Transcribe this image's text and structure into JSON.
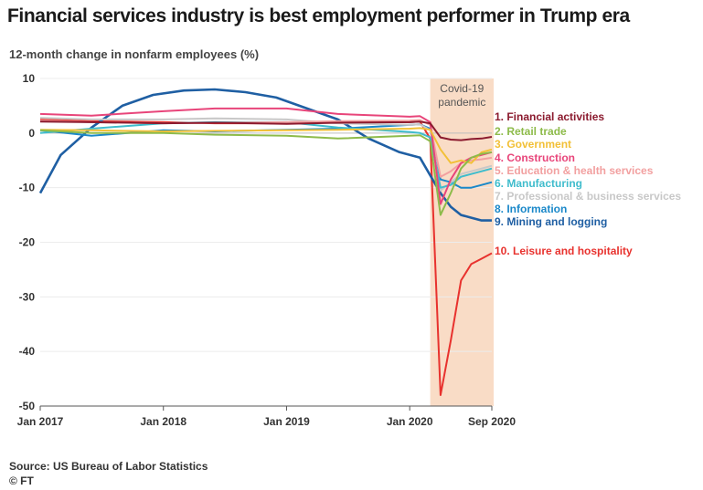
{
  "title": "Financial services industry is best employment performer in Trump era",
  "subtitle": "12-month change in nonfarm employees (%)",
  "source": "Source: US Bureau of Labor Statistics",
  "copyright": "© FT",
  "chart_data": {
    "type": "line",
    "title": "Financial services industry is best employment performer in Trump era",
    "ylabel": "12-month change in nonfarm employees (%)",
    "xlabel": "",
    "x_range": [
      "2017-01",
      "2020-09"
    ],
    "ylim": [
      -50,
      10
    ],
    "y_ticks": [
      10,
      0,
      -10,
      -20,
      -30,
      -40,
      -50
    ],
    "x_ticks": [
      {
        "date": "2017-01",
        "label": "Jan 2017"
      },
      {
        "date": "2018-01",
        "label": "Jan 2018"
      },
      {
        "date": "2019-01",
        "label": "Jan 2019"
      },
      {
        "date": "2020-01",
        "label": "Jan 2020"
      },
      {
        "date": "2020-09",
        "label": "Sep 2020"
      }
    ],
    "grid": true,
    "annotations": [
      {
        "type": "band",
        "from": "2020-03",
        "to": "2020-09",
        "text": [
          "Covid-19",
          "pandemic"
        ],
        "color": "#f9dcc6"
      }
    ],
    "series": [
      {
        "name": "1. Financial activities",
        "color": "#8b1a2e",
        "points": [
          [
            "2017-01",
            2.1
          ],
          [
            "2017-06",
            2.0
          ],
          [
            "2018-01",
            1.8
          ],
          [
            "2018-06",
            1.9
          ],
          [
            "2019-01",
            1.7
          ],
          [
            "2019-06",
            1.9
          ],
          [
            "2020-01",
            2.0
          ],
          [
            "2020-02",
            2.1
          ],
          [
            "2020-03",
            1.8
          ],
          [
            "2020-04",
            -0.8
          ],
          [
            "2020-05",
            -1.2
          ],
          [
            "2020-06",
            -1.3
          ],
          [
            "2020-07",
            -1.1
          ],
          [
            "2020-08",
            -1.0
          ],
          [
            "2020-09",
            -0.7
          ]
        ]
      },
      {
        "name": "2. Retail trade",
        "color": "#8dbb4a",
        "points": [
          [
            "2017-01",
            0.5
          ],
          [
            "2017-06",
            0.0
          ],
          [
            "2018-01",
            0.0
          ],
          [
            "2018-06",
            -0.3
          ],
          [
            "2019-01",
            -0.5
          ],
          [
            "2019-06",
            -1.0
          ],
          [
            "2020-01",
            -0.5
          ],
          [
            "2020-02",
            -0.4
          ],
          [
            "2020-03",
            -1.5
          ],
          [
            "2020-04",
            -15.0
          ],
          [
            "2020-05",
            -11.0
          ],
          [
            "2020-06",
            -6.5
          ],
          [
            "2020-07",
            -4.5
          ],
          [
            "2020-08",
            -3.8
          ],
          [
            "2020-09",
            -3.5
          ]
        ]
      },
      {
        "name": "3. Government",
        "color": "#f2c037",
        "points": [
          [
            "2017-01",
            0.6
          ],
          [
            "2017-06",
            0.5
          ],
          [
            "2018-01",
            0.3
          ],
          [
            "2018-06",
            0.4
          ],
          [
            "2019-01",
            0.5
          ],
          [
            "2019-06",
            0.6
          ],
          [
            "2020-01",
            0.8
          ],
          [
            "2020-02",
            0.9
          ],
          [
            "2020-03",
            0.6
          ],
          [
            "2020-04",
            -3.0
          ],
          [
            "2020-05",
            -5.5
          ],
          [
            "2020-06",
            -5.0
          ],
          [
            "2020-07",
            -5.5
          ],
          [
            "2020-08",
            -3.5
          ],
          [
            "2020-09",
            -3.0
          ]
        ]
      },
      {
        "name": "4. Construction",
        "color": "#e8457a",
        "points": [
          [
            "2017-01",
            3.5
          ],
          [
            "2017-06",
            3.2
          ],
          [
            "2018-01",
            4.0
          ],
          [
            "2018-06",
            4.5
          ],
          [
            "2019-01",
            4.5
          ],
          [
            "2019-06",
            3.5
          ],
          [
            "2020-01",
            3.0
          ],
          [
            "2020-02",
            3.1
          ],
          [
            "2020-03",
            2.0
          ],
          [
            "2020-04",
            -13.0
          ],
          [
            "2020-05",
            -8.5
          ],
          [
            "2020-06",
            -5.5
          ],
          [
            "2020-07",
            -4.5
          ],
          [
            "2020-08",
            -4.0
          ],
          [
            "2020-09",
            -3.5
          ]
        ]
      },
      {
        "name": "5. Education & health services",
        "color": "#f2a0a0",
        "points": [
          [
            "2017-01",
            2.3
          ],
          [
            "2017-06",
            2.0
          ],
          [
            "2018-01",
            1.8
          ],
          [
            "2018-06",
            1.9
          ],
          [
            "2019-01",
            2.0
          ],
          [
            "2019-06",
            2.2
          ],
          [
            "2020-01",
            2.3
          ],
          [
            "2020-02",
            2.4
          ],
          [
            "2020-03",
            1.5
          ],
          [
            "2020-04",
            -8.0
          ],
          [
            "2020-05",
            -7.0
          ],
          [
            "2020-06",
            -5.5
          ],
          [
            "2020-07",
            -5.0
          ],
          [
            "2020-08",
            -4.8
          ],
          [
            "2020-09",
            -4.5
          ]
        ]
      },
      {
        "name": "6. Manufacturing",
        "color": "#3fbccc",
        "points": [
          [
            "2017-01",
            0.0
          ],
          [
            "2017-06",
            0.8
          ],
          [
            "2018-01",
            1.8
          ],
          [
            "2018-06",
            2.0
          ],
          [
            "2019-01",
            2.0
          ],
          [
            "2019-06",
            1.0
          ],
          [
            "2020-01",
            0.2
          ],
          [
            "2020-02",
            0.0
          ],
          [
            "2020-03",
            -0.8
          ],
          [
            "2020-04",
            -10.0
          ],
          [
            "2020-05",
            -9.5
          ],
          [
            "2020-06",
            -8.0
          ],
          [
            "2020-07",
            -7.5
          ],
          [
            "2020-08",
            -7.0
          ],
          [
            "2020-09",
            -6.5
          ]
        ]
      },
      {
        "name": "7. Professional & business services",
        "color": "#c8c8c8",
        "points": [
          [
            "2017-01",
            2.8
          ],
          [
            "2017-06",
            2.5
          ],
          [
            "2018-01",
            2.5
          ],
          [
            "2018-06",
            2.7
          ],
          [
            "2019-01",
            2.5
          ],
          [
            "2019-06",
            1.8
          ],
          [
            "2020-01",
            1.5
          ],
          [
            "2020-02",
            1.6
          ],
          [
            "2020-03",
            0.5
          ],
          [
            "2020-04",
            -10.5
          ],
          [
            "2020-05",
            -9.0
          ],
          [
            "2020-06",
            -7.5
          ],
          [
            "2020-07",
            -7.0
          ],
          [
            "2020-08",
            -6.5
          ],
          [
            "2020-09",
            -6.0
          ]
        ]
      },
      {
        "name": "8. Information",
        "color": "#1a88c9",
        "points": [
          [
            "2017-01",
            0.5
          ],
          [
            "2017-06",
            -0.5
          ],
          [
            "2018-01",
            0.5
          ],
          [
            "2018-06",
            0.3
          ],
          [
            "2019-01",
            0.6
          ],
          [
            "2019-06",
            0.8
          ],
          [
            "2020-01",
            1.5
          ],
          [
            "2020-02",
            1.6
          ],
          [
            "2020-03",
            0.8
          ],
          [
            "2020-04",
            -8.5
          ],
          [
            "2020-05",
            -9.0
          ],
          [
            "2020-06",
            -10.0
          ],
          [
            "2020-07",
            -10.0
          ],
          [
            "2020-08",
            -9.5
          ],
          [
            "2020-09",
            -9.0
          ]
        ]
      },
      {
        "name": "9. Mining and logging",
        "color": "#1f5fa3",
        "points": [
          [
            "2017-01",
            -11.0
          ],
          [
            "2017-03",
            -4.0
          ],
          [
            "2017-06",
            1.0
          ],
          [
            "2017-09",
            5.0
          ],
          [
            "2017-12",
            7.0
          ],
          [
            "2018-03",
            7.8
          ],
          [
            "2018-06",
            8.0
          ],
          [
            "2018-09",
            7.5
          ],
          [
            "2018-12",
            6.5
          ],
          [
            "2019-03",
            4.5
          ],
          [
            "2019-06",
            2.5
          ],
          [
            "2019-09",
            -1.0
          ],
          [
            "2019-12",
            -3.5
          ],
          [
            "2020-02",
            -4.5
          ],
          [
            "2020-04",
            -11.0
          ],
          [
            "2020-05",
            -13.5
          ],
          [
            "2020-06",
            -15.0
          ],
          [
            "2020-07",
            -15.5
          ],
          [
            "2020-08",
            -16.0
          ],
          [
            "2020-09",
            -16.0
          ]
        ]
      },
      {
        "name": "10. Leisure and hospitality",
        "color": "#e8322e",
        "points": [
          [
            "2017-01",
            2.5
          ],
          [
            "2017-06",
            2.2
          ],
          [
            "2018-01",
            2.0
          ],
          [
            "2018-06",
            1.8
          ],
          [
            "2019-01",
            1.8
          ],
          [
            "2019-06",
            2.0
          ],
          [
            "2020-01",
            2.0
          ],
          [
            "2020-02",
            2.1
          ],
          [
            "2020-03",
            -1.0
          ],
          [
            "2020-04",
            -48.0
          ],
          [
            "2020-05",
            -38.0
          ],
          [
            "2020-06",
            -27.0
          ],
          [
            "2020-07",
            -24.0
          ],
          [
            "2020-08",
            -23.0
          ],
          [
            "2020-09",
            -22.0
          ]
        ]
      }
    ]
  }
}
